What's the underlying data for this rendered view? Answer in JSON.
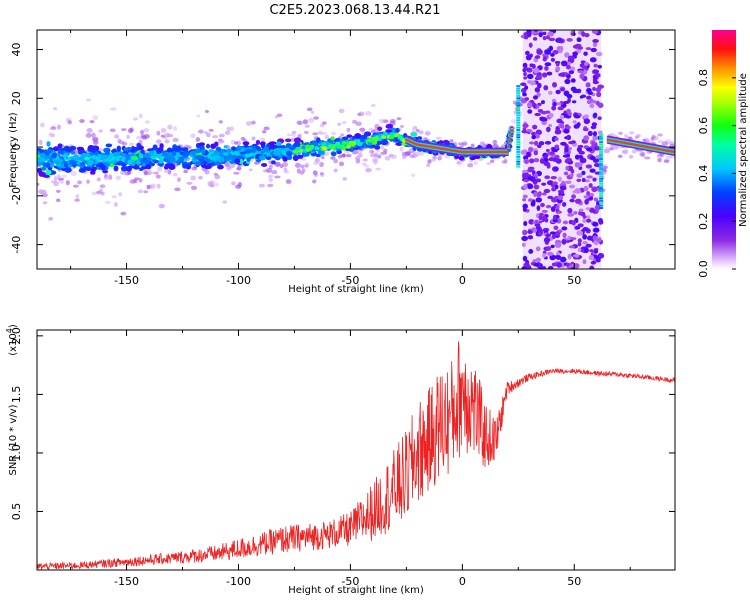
{
  "title": "C2E5.2023.068.13.44.R21",
  "chart_data": [
    {
      "type": "heatmap",
      "xlabel": "Height of straight line (km)",
      "ylabel": "Frequency (Hz)",
      "xlim": [
        -190,
        95
      ],
      "ylim": [
        -50,
        48
      ],
      "xticks": [
        -150,
        -100,
        -50,
        0,
        50
      ],
      "yticks": [
        -40,
        -20,
        0,
        20,
        40
      ],
      "colorbar": {
        "label": "Normalized spectral amplitude",
        "range": [
          0.0,
          1.0
        ],
        "ticks": [
          "0.0",
          "0.2",
          "0.4",
          "0.6",
          "0.8"
        ]
      },
      "ridge": [
        {
          "x": -170,
          "y": -5
        },
        {
          "x": -120,
          "y": -4
        },
        {
          "x": -80,
          "y": -2
        },
        {
          "x": -50,
          "y": 1
        },
        {
          "x": -30,
          "y": 5
        },
        {
          "x": -20,
          "y": 1
        },
        {
          "x": 0,
          "y": -2
        },
        {
          "x": 20,
          "y": -2
        },
        {
          "x": 25,
          "y": 20
        },
        {
          "x": 62,
          "y": -20
        },
        {
          "x": 65,
          "y": 3
        },
        {
          "x": 95,
          "y": -2
        }
      ]
    },
    {
      "type": "line",
      "xlabel": "Height of straight line (km)",
      "ylabel": "SNR (10 * v/v)",
      "yscale_label": "(x10",
      "yscale_exp": "4",
      "yscale_close": ")",
      "xlim": [
        -190,
        95
      ],
      "ylim": [
        0,
        2.05
      ],
      "xticks": [
        -150,
        -100,
        -50,
        0,
        50
      ],
      "yticks": [
        "0.5",
        "1.0",
        "1.5",
        "2.0"
      ],
      "color": "#ee2222",
      "series": [
        {
          "x": [
            -190,
            -170,
            -150,
            -130,
            -110,
            -100,
            -90,
            -80,
            -70,
            -60,
            -50,
            -40,
            -30,
            -25,
            -20,
            -15,
            -10,
            -5,
            0,
            5,
            10,
            15,
            20,
            25,
            30,
            40,
            50,
            60,
            70,
            80,
            95
          ],
          "values": [
            0.03,
            0.04,
            0.07,
            0.1,
            0.14,
            0.18,
            0.22,
            0.26,
            0.28,
            0.3,
            0.35,
            0.5,
            0.7,
            0.8,
            1.0,
            1.1,
            1.25,
            1.3,
            1.55,
            1.4,
            1.15,
            1.1,
            1.55,
            1.6,
            1.65,
            1.7,
            1.7,
            1.68,
            1.67,
            1.65,
            1.62
          ],
          "spread": [
            0.03,
            0.03,
            0.04,
            0.05,
            0.07,
            0.09,
            0.1,
            0.12,
            0.12,
            0.12,
            0.15,
            0.25,
            0.35,
            0.4,
            0.45,
            0.45,
            0.5,
            0.5,
            0.55,
            0.45,
            0.3,
            0.2,
            0.06,
            0.04,
            0.03,
            0.02,
            0.02,
            0.02,
            0.02,
            0.02,
            0.02
          ]
        }
      ]
    }
  ]
}
